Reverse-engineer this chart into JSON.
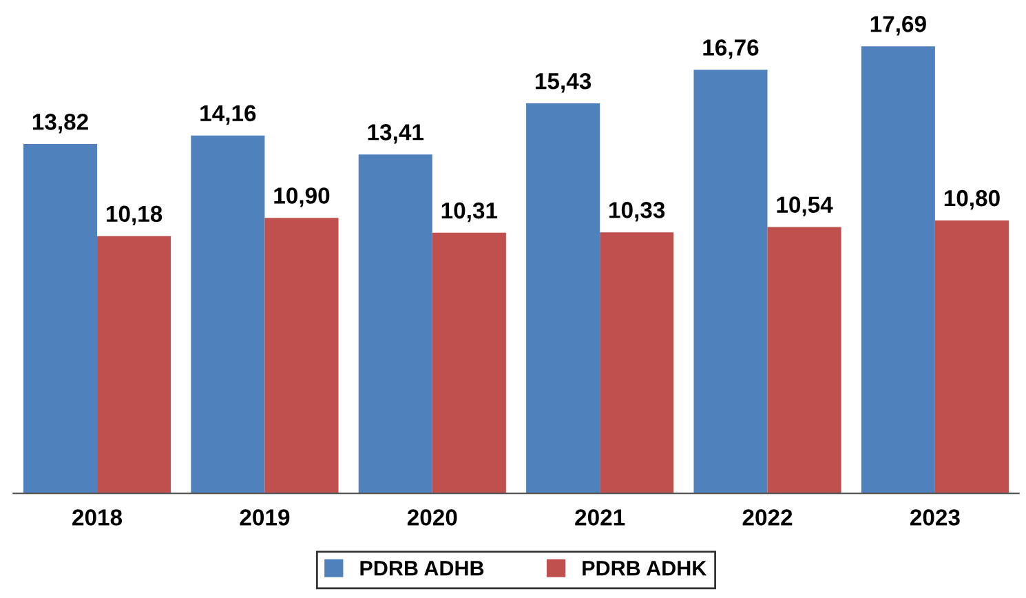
{
  "chart_data": {
    "type": "bar",
    "categories": [
      "2018",
      "2019",
      "2020",
      "2021",
      "2022",
      "2023"
    ],
    "series": [
      {
        "name": "PDRB ADHB",
        "color": "#4f81bd",
        "values": [
          13.82,
          14.16,
          13.41,
          15.43,
          16.76,
          17.69
        ],
        "value_labels": [
          "13,82",
          "14,16",
          "13,41",
          "15,43",
          "16,76",
          "17,69"
        ]
      },
      {
        "name": "PDRB ADHK",
        "color": "#c0504d",
        "values": [
          10.18,
          10.9,
          10.31,
          10.33,
          10.54,
          10.8
        ],
        "value_labels": [
          "10,18",
          "10,90",
          "10,31",
          "10,33",
          "10,54",
          "10,80"
        ]
      }
    ],
    "legend": "bottom",
    "grid": false
  }
}
